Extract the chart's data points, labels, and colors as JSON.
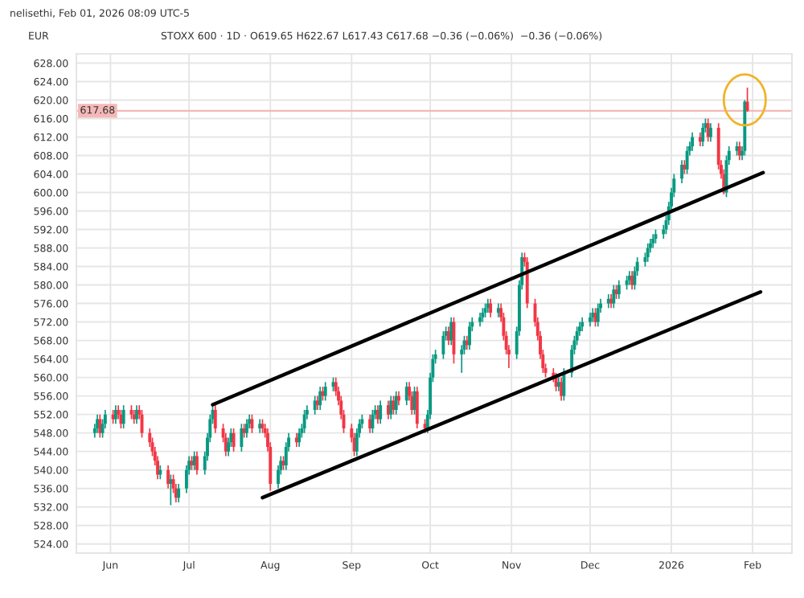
{
  "chart_data": {
    "type": "candlestick",
    "title": "nelisethi, Feb 01, 2026 08:09 UTC-5",
    "subtitle": "STOXX 600 · 1D · O619.65 H622.67 L617.43 C617.68 −0.36 (−0.06%)  −0.36 (−0.06%)",
    "annotations": [
      "EUR"
    ],
    "colors": [
      "#089981",
      "#089981",
      "#f23645",
      "#089981",
      "#089981",
      "#f23645",
      "#089981",
      "#f23645",
      "#f23645",
      "#089981",
      "#f23645",
      "#f23645",
      "#089981",
      "#f23645",
      "#f23645",
      "#f23645",
      "#f23645",
      "#f23645",
      "#f23645",
      "#089981",
      "#f23645",
      "#089981",
      "#f23645",
      "#f23645",
      "#089981",
      "#089981",
      "#089981",
      "#f23645",
      "#089981",
      "#f23645",
      "#089981",
      "#089981",
      "#089981",
      "#089981",
      "#f23645",
      "#f23645",
      "#f23645",
      "#089981",
      "#089981",
      "#f23645",
      "#089981",
      "#f23645",
      "#089981",
      "#089981",
      "#f23645",
      "#089981",
      "#f23645",
      "#f23645",
      "#f23645",
      "#f23645",
      "#089981",
      "#089981",
      "#f23645",
      "#089981",
      "#089981",
      "#f23645",
      "#089981",
      "#089981",
      "#089981",
      "#089981",
      "#089981",
      "#f23645",
      "#089981",
      "#f23645",
      "#089981",
      "#089981",
      "#f23645",
      "#f23645",
      "#f23645",
      "#f23645",
      "#f23645",
      "#f23645",
      "#089981",
      "#089981",
      "#089981",
      "#f23645",
      "#089981",
      "#089981",
      "#f23645",
      "#089981",
      "#f23645",
      "#089981",
      "#f23645",
      "#089981",
      "#f23645",
      "#089981",
      "#f23645",
      "#f23645",
      "#089981",
      "#f23645",
      "#f23645",
      "#089981",
      "#089981",
      "#089981",
      "#089981",
      "#089981",
      "#089981",
      "#f23645",
      "#089981",
      "#f23645",
      "#089981",
      "#089981",
      "#f23645",
      "#089981",
      "#089981",
      "#089981",
      "#089981",
      "#089981",
      "#089981",
      "#f23645",
      "#089981",
      "#f23645",
      "#f23645",
      "#f23645",
      "#f23645",
      "#089981",
      "#089981",
      "#089981",
      "#f23645",
      "#f23645",
      "#f23645",
      "#f23645",
      "#f23645",
      "#f23645",
      "#f23645",
      "#f23645",
      "#f23645",
      "#089981",
      "#f23645",
      "#089981",
      "#089981",
      "#089981",
      "#089981",
      "#089981",
      "#089981",
      "#089981",
      "#089981",
      "#f23645",
      "#089981",
      "#089981",
      "#089981",
      "#f23645",
      "#089981",
      "#f23645",
      "#089981",
      "#089981",
      "#089981",
      "#f23645",
      "#089981",
      "#089981",
      "#089981",
      "#089981",
      "#089981",
      "#089981",
      "#089981",
      "#089981",
      "#089981",
      "#089981",
      "#089981",
      "#089981",
      "#089981",
      "#f23645",
      "#089981",
      "#089981",
      "#089981",
      "#f23645",
      "#089981",
      "#089981",
      "#f23645",
      "#089981",
      "#f23645",
      "#f23645",
      "#f23645",
      "#089981",
      "#089981",
      "#089981",
      "#f23645",
      "#089981",
      "#089981",
      "#f23645"
    ],
    "x": [
      "2025-05-26",
      "2025-05-27",
      "2025-05-28",
      "2025-05-29",
      "2025-05-30",
      "2025-06-02",
      "2025-06-03",
      "2025-06-04",
      "2025-06-05",
      "2025-06-06",
      "2025-06-09",
      "2025-06-10",
      "2025-06-11",
      "2025-06-12",
      "2025-06-13",
      "2025-06-16",
      "2025-06-17",
      "2025-06-18",
      "2025-06-19",
      "2025-06-20",
      "2025-06-23",
      "2025-06-24",
      "2025-06-25",
      "2025-06-26",
      "2025-06-27",
      "2025-06-30",
      "2025-07-01",
      "2025-07-02",
      "2025-07-03",
      "2025-07-04",
      "2025-07-07",
      "2025-07-08",
      "2025-07-09",
      "2025-07-10",
      "2025-07-11",
      "2025-07-14",
      "2025-07-15",
      "2025-07-16",
      "2025-07-17",
      "2025-07-18",
      "2025-07-21",
      "2025-07-22",
      "2025-07-23",
      "2025-07-24",
      "2025-07-25",
      "2025-07-28",
      "2025-07-29",
      "2025-07-30",
      "2025-07-31",
      "2025-08-01",
      "2025-08-04",
      "2025-08-05",
      "2025-08-06",
      "2025-08-07",
      "2025-08-08",
      "2025-08-11",
      "2025-08-12",
      "2025-08-13",
      "2025-08-14",
      "2025-08-15",
      "2025-08-18",
      "2025-08-19",
      "2025-08-20",
      "2025-08-21",
      "2025-08-22",
      "2025-08-25",
      "2025-08-26",
      "2025-08-27",
      "2025-08-28",
      "2025-08-29",
      "2025-09-01",
      "2025-09-02",
      "2025-09-03",
      "2025-09-04",
      "2025-09-05",
      "2025-09-08",
      "2025-09-09",
      "2025-09-10",
      "2025-09-11",
      "2025-09-12",
      "2025-09-15",
      "2025-09-16",
      "2025-09-17",
      "2025-09-18",
      "2025-09-19",
      "2025-09-22",
      "2025-09-23",
      "2025-09-24",
      "2025-09-25",
      "2025-09-26",
      "2025-09-29",
      "2025-09-30",
      "2025-10-01",
      "2025-10-02",
      "2025-10-03",
      "2025-10-06",
      "2025-10-07",
      "2025-10-08",
      "2025-10-09",
      "2025-10-10",
      "2025-10-13",
      "2025-10-14",
      "2025-10-15",
      "2025-10-16",
      "2025-10-17",
      "2025-10-20",
      "2025-10-21",
      "2025-10-22",
      "2025-10-23",
      "2025-10-24",
      "2025-10-27",
      "2025-10-28",
      "2025-10-29",
      "2025-10-30",
      "2025-10-31",
      "2025-11-03",
      "2025-11-04",
      "2025-11-05",
      "2025-11-06",
      "2025-11-07",
      "2025-11-10",
      "2025-11-11",
      "2025-11-12",
      "2025-11-13",
      "2025-11-14",
      "2025-11-17",
      "2025-11-18",
      "2025-11-19",
      "2025-11-20",
      "2025-11-21",
      "2025-11-24",
      "2025-11-25",
      "2025-11-26",
      "2025-11-27",
      "2025-11-28",
      "2025-12-01",
      "2025-12-02",
      "2025-12-03",
      "2025-12-04",
      "2025-12-05",
      "2025-12-08",
      "2025-12-09",
      "2025-12-10",
      "2025-12-11",
      "2025-12-12",
      "2025-12-15",
      "2025-12-16",
      "2025-12-17",
      "2025-12-18",
      "2025-12-19",
      "2025-12-22",
      "2025-12-23",
      "2025-12-24",
      "2025-12-25",
      "2025-12-26",
      "2025-12-29",
      "2025-12-30",
      "2025-12-31",
      "2026-01-01",
      "2026-01-02",
      "2026-01-05",
      "2026-01-06",
      "2026-01-07",
      "2026-01-08",
      "2026-01-09",
      "2026-01-12",
      "2026-01-13",
      "2026-01-14",
      "2026-01-15",
      "2026-01-16",
      "2026-01-19",
      "2026-01-20",
      "2026-01-21",
      "2026-01-22",
      "2026-01-23",
      "2026-01-26",
      "2026-01-27",
      "2026-01-28",
      "2026-01-29",
      "2026-01-30"
    ],
    "ohlc": [
      [
        548,
        550,
        547,
        549
      ],
      [
        549,
        552,
        548,
        551
      ],
      [
        551,
        552,
        547,
        548
      ],
      [
        548,
        551,
        547,
        550
      ],
      [
        550,
        553,
        549,
        552
      ],
      [
        552,
        553,
        550,
        551
      ],
      [
        551,
        554,
        550,
        553
      ],
      [
        553,
        554,
        551,
        552
      ],
      [
        552,
        553,
        549,
        550
      ],
      [
        550,
        554,
        549,
        553
      ],
      [
        553,
        554,
        551,
        552
      ],
      [
        552,
        553,
        550,
        551
      ],
      [
        551,
        554,
        550,
        553
      ],
      [
        553,
        554,
        551,
        552
      ],
      [
        552,
        553,
        547,
        548
      ],
      [
        548,
        549,
        545,
        546
      ],
      [
        546,
        547,
        543,
        544
      ],
      [
        544,
        545,
        541,
        542
      ],
      [
        542,
        543,
        538,
        539
      ],
      [
        539,
        541,
        538,
        540
      ],
      [
        540,
        541,
        536,
        537
      ],
      [
        537,
        539,
        532.4,
        538
      ],
      [
        538,
        539,
        535,
        536
      ],
      [
        536,
        537,
        533,
        534
      ],
      [
        534,
        537,
        533,
        536
      ],
      [
        536,
        541,
        535,
        540
      ],
      [
        540,
        543,
        539,
        542
      ],
      [
        542,
        543,
        540,
        541
      ],
      [
        541,
        544,
        540,
        543
      ],
      [
        543,
        544,
        539,
        540
      ],
      [
        540,
        544,
        539,
        543
      ],
      [
        543,
        548,
        542,
        547
      ],
      [
        547,
        552,
        546,
        551
      ],
      [
        551,
        554,
        550,
        553
      ],
      [
        553,
        554,
        548,
        549
      ],
      [
        549,
        550,
        546,
        547
      ],
      [
        547,
        548,
        543,
        544
      ],
      [
        544,
        547,
        543,
        546
      ],
      [
        546,
        549,
        545,
        548
      ],
      [
        548,
        549,
        544,
        545
      ],
      [
        545,
        550,
        544,
        549
      ],
      [
        549,
        550,
        547,
        548
      ],
      [
        548,
        551,
        547,
        550
      ],
      [
        550,
        552,
        549,
        551
      ],
      [
        551,
        552,
        548,
        549
      ],
      [
        549,
        551,
        548,
        550
      ],
      [
        550,
        551,
        548,
        549
      ],
      [
        549,
        550,
        547,
        548
      ],
      [
        548,
        549,
        544,
        545
      ],
      [
        545,
        546,
        535.5,
        537
      ],
      [
        537,
        541,
        536,
        540
      ],
      [
        540,
        543,
        539,
        542
      ],
      [
        542,
        543,
        540,
        541
      ],
      [
        541,
        546,
        540,
        545
      ],
      [
        545,
        548,
        544,
        547
      ],
      [
        547,
        548,
        545,
        546
      ],
      [
        546,
        549,
        545,
        548
      ],
      [
        548,
        550,
        547,
        549
      ],
      [
        549,
        553,
        548,
        552
      ],
      [
        552,
        554,
        551,
        553
      ],
      [
        553,
        556,
        552,
        555
      ],
      [
        555,
        556,
        553,
        554
      ],
      [
        554,
        558,
        553,
        557
      ],
      [
        557,
        558,
        555,
        556
      ],
      [
        556,
        559,
        555,
        558
      ],
      [
        558,
        560,
        557,
        559
      ],
      [
        559,
        560,
        556,
        557
      ],
      [
        557,
        558,
        554,
        555
      ],
      [
        555,
        556,
        551,
        552
      ],
      [
        552,
        553,
        548,
        549
      ],
      [
        549,
        550,
        546,
        547
      ],
      [
        547,
        548,
        543,
        544
      ],
      [
        544,
        549,
        543,
        548
      ],
      [
        548,
        551,
        547,
        550
      ],
      [
        550,
        552,
        549,
        551
      ],
      [
        551,
        552,
        548,
        549
      ],
      [
        549,
        553,
        548,
        552
      ],
      [
        552,
        554,
        551,
        553
      ],
      [
        553,
        554,
        550,
        551
      ],
      [
        551,
        555,
        550,
        554
      ],
      [
        554,
        555,
        551,
        552
      ],
      [
        552,
        556,
        551,
        555
      ],
      [
        555,
        556,
        552,
        553
      ],
      [
        553,
        557,
        552,
        556
      ],
      [
        556,
        557,
        554,
        555
      ],
      [
        555,
        559,
        554,
        558
      ],
      [
        558,
        559,
        555,
        556
      ],
      [
        556,
        557,
        552,
        553
      ],
      [
        553,
        558,
        552,
        557
      ],
      [
        557,
        558,
        549,
        550
      ],
      [
        550,
        551,
        548,
        549
      ],
      [
        549,
        553,
        548,
        552
      ],
      [
        552,
        561,
        551,
        560
      ],
      [
        560,
        565,
        559,
        564
      ],
      [
        564,
        566,
        563,
        565
      ],
      [
        565,
        570,
        564,
        569
      ],
      [
        569,
        571,
        568,
        570
      ],
      [
        570,
        571,
        567,
        568
      ],
      [
        568,
        573,
        567,
        572
      ],
      [
        572,
        573,
        563,
        565
      ],
      [
        565,
        567,
        561,
        566
      ],
      [
        566,
        569,
        565,
        568
      ],
      [
        568,
        569,
        566,
        567
      ],
      [
        567,
        572,
        566,
        571
      ],
      [
        571,
        573,
        570,
        572
      ],
      [
        572,
        574,
        571,
        573
      ],
      [
        573,
        575,
        572,
        574
      ],
      [
        574,
        576,
        573,
        575
      ],
      [
        575,
        577,
        574,
        576
      ],
      [
        576,
        577,
        573,
        574
      ],
      [
        574,
        576,
        573,
        575
      ],
      [
        575,
        576,
        572,
        573
      ],
      [
        573,
        574,
        568,
        569
      ],
      [
        569,
        570,
        565,
        566
      ],
      [
        566,
        567,
        562,
        565
      ],
      [
        565,
        571,
        564,
        570
      ],
      [
        570,
        581,
        569,
        580
      ],
      [
        580,
        587,
        579,
        586
      ],
      [
        586,
        587,
        584,
        585
      ],
      [
        585,
        586,
        575,
        576
      ],
      [
        576,
        577,
        571,
        572
      ],
      [
        572,
        573,
        568,
        569
      ],
      [
        569,
        570,
        564,
        565
      ],
      [
        565,
        566,
        561,
        562
      ],
      [
        562,
        563,
        560,
        561
      ],
      [
        561,
        562,
        559,
        560
      ],
      [
        560,
        561,
        557,
        558
      ],
      [
        558,
        560,
        557,
        559
      ],
      [
        559,
        560,
        555,
        556
      ],
      [
        556,
        562,
        555,
        561
      ],
      [
        561,
        567,
        560,
        566
      ],
      [
        566,
        569,
        565,
        568
      ],
      [
        568,
        571,
        567,
        570
      ],
      [
        570,
        572,
        569,
        571
      ],
      [
        571,
        573,
        570,
        572
      ],
      [
        572,
        574,
        571,
        573
      ],
      [
        573,
        575,
        572,
        574
      ],
      [
        574,
        575,
        571,
        572
      ],
      [
        572,
        576,
        571,
        575
      ],
      [
        575,
        577,
        574,
        576
      ],
      [
        576,
        578,
        575,
        577
      ],
      [
        577,
        578,
        575,
        576
      ],
      [
        576,
        580,
        575,
        579
      ],
      [
        579,
        580,
        577,
        578
      ],
      [
        578,
        581,
        577,
        580
      ],
      [
        580,
        582,
        579,
        581
      ],
      [
        581,
        583,
        580,
        582
      ],
      [
        582,
        583,
        579,
        580
      ],
      [
        580,
        584,
        579,
        583
      ],
      [
        583,
        586,
        582,
        585
      ],
      [
        585,
        587,
        584,
        586
      ],
      [
        586,
        589,
        585,
        588
      ],
      [
        588,
        590,
        587,
        589
      ],
      [
        589,
        591,
        588,
        590
      ],
      [
        590,
        592,
        589,
        591
      ],
      [
        591,
        593,
        590,
        592
      ],
      [
        592,
        595,
        591,
        594
      ],
      [
        594,
        598,
        593,
        597
      ],
      [
        597,
        601,
        596,
        600
      ],
      [
        600,
        604,
        599,
        603
      ],
      [
        603,
        607,
        602,
        606
      ],
      [
        606,
        607,
        604,
        605
      ],
      [
        605,
        610,
        604,
        609
      ],
      [
        609,
        611,
        608,
        610
      ],
      [
        610,
        613,
        609,
        612
      ],
      [
        612,
        613,
        610,
        611
      ],
      [
        611,
        615,
        610,
        614
      ],
      [
        614,
        616,
        613,
        615
      ],
      [
        615,
        616,
        611,
        612
      ],
      [
        612,
        615,
        611,
        614
      ],
      [
        614,
        615,
        605,
        606
      ],
      [
        606,
        607,
        603,
        604
      ],
      [
        604,
        605,
        599.6,
        600
      ],
      [
        600,
        608,
        599,
        607
      ],
      [
        607,
        610,
        606,
        609
      ],
      [
        609,
        611,
        608,
        610
      ],
      [
        610,
        611,
        607,
        608
      ],
      [
        608,
        610,
        607,
        609
      ],
      [
        609,
        620,
        608,
        619.65
      ],
      [
        619.65,
        622.67,
        617.43,
        617.68
      ]
    ],
    "series": [
      {
        "type": "line",
        "color": "#000000",
        "x": [
          "2025-07-10",
          "2026-02-05"
        ],
        "values": [
          554.1,
          604.3
        ]
      },
      {
        "type": "line",
        "color": "#000000",
        "x": [
          "2025-07-29",
          "2026-02-04"
        ],
        "values": [
          534.0,
          578.5
        ]
      }
    ],
    "ref_lines": [
      {
        "axis": "y",
        "value": 617.68,
        "label": "617.68",
        "color": "#f5b8b8"
      }
    ],
    "xlim": [
      "2025-05-19",
      "2026-02-16"
    ],
    "xticks": [
      {
        "value": "2025-06-01",
        "label": "Jun"
      },
      {
        "value": "2025-07-01",
        "label": "Jul"
      },
      {
        "value": "2025-08-01",
        "label": "Aug"
      },
      {
        "value": "2025-09-01",
        "label": "Sep"
      },
      {
        "value": "2025-10-01",
        "label": "Oct"
      },
      {
        "value": "2025-11-01",
        "label": "Nov"
      },
      {
        "value": "2025-12-01",
        "label": "Dec"
      },
      {
        "value": "2026-01-01",
        "label": "2026"
      },
      {
        "value": "2026-02-01",
        "label": "Feb"
      }
    ],
    "ylim": [
      522,
      630
    ],
    "yticks": [
      {
        "value": 524,
        "label": "524.00"
      },
      {
        "value": 528,
        "label": "528.00"
      },
      {
        "value": 532,
        "label": "532.00"
      },
      {
        "value": 536,
        "label": "536.00"
      },
      {
        "value": 540,
        "label": "540.00"
      },
      {
        "value": 544,
        "label": "544.00"
      },
      {
        "value": 548,
        "label": "548.00"
      },
      {
        "value": 552,
        "label": "552.00"
      },
      {
        "value": 556,
        "label": "556.00"
      },
      {
        "value": 560,
        "label": "560.00"
      },
      {
        "value": 564,
        "label": "564.00"
      },
      {
        "value": 568,
        "label": "568.00"
      },
      {
        "value": 572,
        "label": "572.00"
      },
      {
        "value": 576,
        "label": "576.00"
      },
      {
        "value": 580,
        "label": "580.00"
      },
      {
        "value": 584,
        "label": "584.00"
      },
      {
        "value": 588,
        "label": "588.00"
      },
      {
        "value": 592,
        "label": "592.00"
      },
      {
        "value": 596,
        "label": "596.00"
      },
      {
        "value": 600,
        "label": "600.00"
      },
      {
        "value": 604,
        "label": "604.00"
      },
      {
        "value": 608,
        "label": "608.00"
      },
      {
        "value": 612,
        "label": "612.00"
      },
      {
        "value": 616,
        "label": "616.00"
      },
      {
        "value": 620,
        "label": "620.00"
      },
      {
        "value": 624,
        "label": "624.00"
      },
      {
        "value": 628,
        "label": "628.00"
      }
    ],
    "grid": true,
    "legend": false
  }
}
